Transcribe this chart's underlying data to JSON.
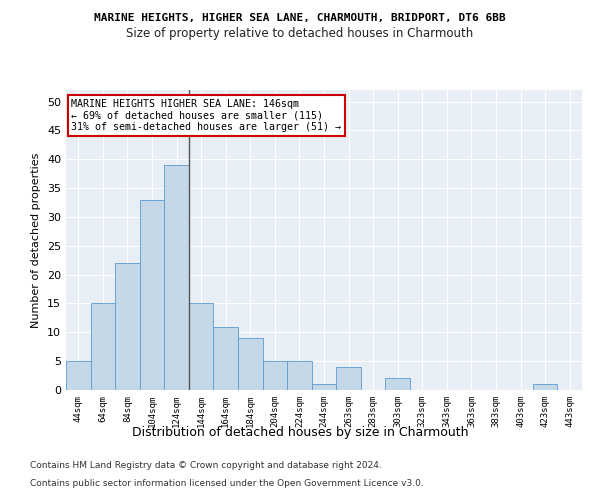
{
  "title1": "MARINE HEIGHTS, HIGHER SEA LANE, CHARMOUTH, BRIDPORT, DT6 6BB",
  "title2": "Size of property relative to detached houses in Charmouth",
  "xlabel": "Distribution of detached houses by size in Charmouth",
  "ylabel": "Number of detached properties",
  "categories": [
    "44sqm",
    "64sqm",
    "84sqm",
    "104sqm",
    "124sqm",
    "144sqm",
    "164sqm",
    "184sqm",
    "204sqm",
    "224sqm",
    "244sqm",
    "263sqm",
    "283sqm",
    "303sqm",
    "323sqm",
    "343sqm",
    "363sqm",
    "383sqm",
    "403sqm",
    "423sqm",
    "443sqm"
  ],
  "values": [
    5,
    15,
    22,
    33,
    39,
    15,
    11,
    9,
    5,
    5,
    1,
    4,
    0,
    2,
    0,
    0,
    0,
    0,
    0,
    1,
    0
  ],
  "bar_color": "#c5d8e8",
  "bar_edge_color": "#5b9bd5",
  "vline_color": "#555555",
  "annotation_text": "MARINE HEIGHTS HIGHER SEA LANE: 146sqm\n← 69% of detached houses are smaller (115)\n31% of semi-detached houses are larger (51) →",
  "annotation_box_color": "#ffffff",
  "annotation_box_edge": "#cc0000",
  "ylim": [
    0,
    52
  ],
  "yticks": [
    0,
    5,
    10,
    15,
    20,
    25,
    30,
    35,
    40,
    45,
    50
  ],
  "bg_color": "#e8eef5",
  "grid_color": "#ffffff",
  "footer1": "Contains HM Land Registry data © Crown copyright and database right 2024.",
  "footer2": "Contains public sector information licensed under the Open Government Licence v3.0."
}
